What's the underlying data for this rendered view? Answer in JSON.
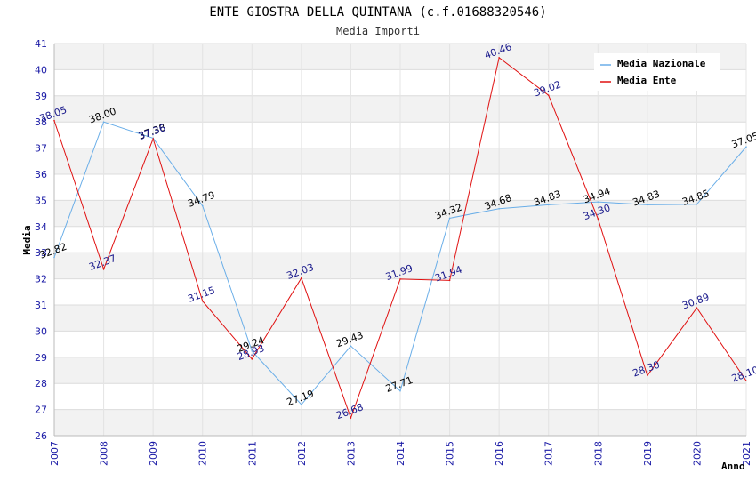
{
  "chart_data": {
    "type": "line",
    "title": "ENTE GIOSTRA DELLA QUINTANA (c.f.01688320546)",
    "subtitle": "Media Importi",
    "xlabel": "Anno",
    "ylabel": "Media",
    "ylim": [
      26,
      41
    ],
    "y_ticks": [
      "26",
      "27",
      "28",
      "29",
      "30",
      "31",
      "32",
      "33",
      "34",
      "35",
      "36",
      "37",
      "38",
      "39",
      "40",
      "41"
    ],
    "categories": [
      "2007",
      "2008",
      "2009",
      "2010",
      "2011",
      "2012",
      "2013",
      "2014",
      "2015",
      "2016",
      "2017",
      "2018",
      "2019",
      "2020",
      "2021"
    ],
    "legend_position": "top-right",
    "series": [
      {
        "name": "Media Nazionale",
        "color": "#6aaee8",
        "label_color": "#000000",
        "values": [
          32.82,
          38.0,
          37.38,
          34.79,
          29.24,
          27.19,
          29.43,
          27.71,
          34.32,
          34.68,
          34.83,
          34.94,
          34.83,
          34.85,
          37.05
        ],
        "labels": [
          "32.82",
          "38.00",
          "37.38",
          "34.79",
          "29.24",
          "27.19",
          "29.43",
          "27.71",
          "34.32",
          "34.68",
          "34.83",
          "34.94",
          "34.83",
          "34.85",
          "37.05"
        ]
      },
      {
        "name": "Media Ente",
        "color": "#e01010",
        "label_color": "#1a1a8c",
        "values": [
          38.05,
          32.37,
          37.36,
          31.15,
          28.93,
          32.03,
          26.68,
          31.99,
          31.94,
          40.46,
          39.02,
          34.3,
          28.3,
          30.89,
          28.1
        ],
        "labels": [
          "38.05",
          "32.37",
          "37.36",
          "31.15",
          "28.93",
          "32.03",
          "26.68",
          "31.99",
          "31.94",
          "40.46",
          "39.02",
          "34.30",
          "28.30",
          "30.89",
          "28.10"
        ]
      }
    ]
  }
}
